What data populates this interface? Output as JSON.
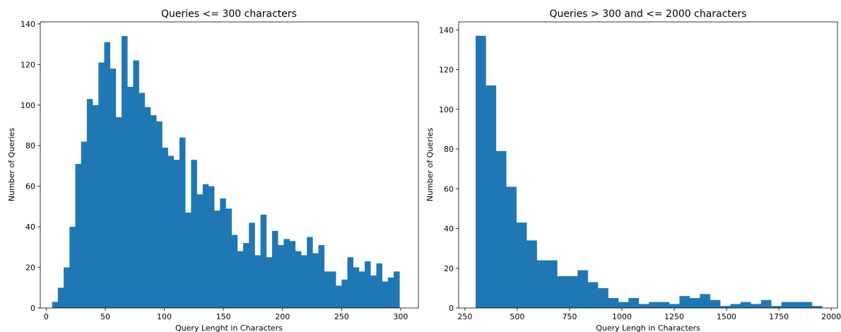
{
  "chart_data": [
    {
      "type": "bar",
      "title": "Queries <= 300 characters",
      "xlabel": "Query Lenght in Characters",
      "ylabel": "Number of Queries",
      "xlim": [
        -5,
        315
      ],
      "ylim": [
        0,
        141
      ],
      "xticks": [
        0,
        50,
        100,
        150,
        200,
        250,
        300
      ],
      "yticks": [
        0,
        20,
        40,
        60,
        80,
        100,
        120,
        140
      ],
      "bin_start": 5,
      "bin_width": 4.9,
      "values": [
        3,
        10,
        20,
        40,
        71,
        82,
        103,
        100,
        121,
        131,
        118,
        94,
        134,
        109,
        122,
        106,
        99,
        95,
        92,
        79,
        75,
        73,
        84,
        47,
        73,
        56,
        61,
        60,
        48,
        54,
        49,
        36,
        28,
        32,
        42,
        26,
        46,
        25,
        38,
        31,
        34,
        33,
        28,
        26,
        35,
        27,
        31,
        18,
        18,
        11,
        14,
        25,
        20,
        18,
        23,
        16,
        22,
        13,
        15,
        18
      ]
    },
    {
      "type": "bar",
      "title": "Queries > 300 and <= 2000 characters",
      "xlabel": "Query Lengh in Characters",
      "ylabel": "Number of Queries",
      "xlim": [
        220,
        2030
      ],
      "ylim": [
        0,
        144
      ],
      "xticks": [
        250,
        500,
        750,
        1000,
        1250,
        1500,
        1750,
        2000
      ],
      "yticks": [
        0,
        20,
        40,
        60,
        80,
        100,
        120,
        140
      ],
      "bin_start": 301,
      "bin_width": 48.7,
      "values": [
        137,
        112,
        79,
        61,
        43,
        34,
        24,
        24,
        16,
        16,
        19,
        13,
        10,
        5,
        3,
        5,
        2,
        3,
        3,
        2,
        6,
        5,
        7,
        4,
        1,
        2,
        3,
        2,
        4,
        1,
        3,
        3,
        3,
        1
      ]
    }
  ]
}
